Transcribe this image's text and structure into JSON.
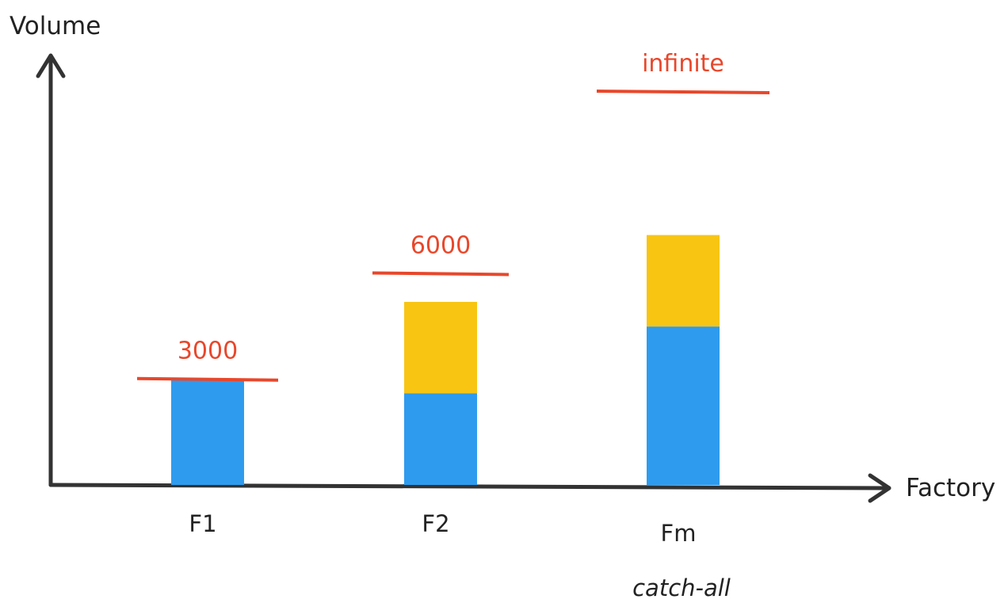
{
  "chart_data": {
    "type": "bar",
    "stacked": true,
    "xlabel": "Factory",
    "ylabel": "Volume",
    "categories": [
      "F1",
      "F2",
      "Fm"
    ],
    "category_notes": [
      "",
      "",
      "catch-all"
    ],
    "capacity_labels": [
      "3000",
      "6000",
      "infinite"
    ],
    "capacity_values": [
      3000,
      6000,
      null
    ],
    "series": [
      {
        "color": "#2e9bef",
        "values": [
          3000,
          2600,
          4500
        ]
      },
      {
        "color": "#f8c513",
        "values": [
          0,
          2600,
          2600
        ]
      }
    ],
    "ylim": [
      0,
      10400
    ],
    "grid": false,
    "colors": {
      "capacity_line": "#e8472b",
      "axis": "#333333"
    }
  }
}
